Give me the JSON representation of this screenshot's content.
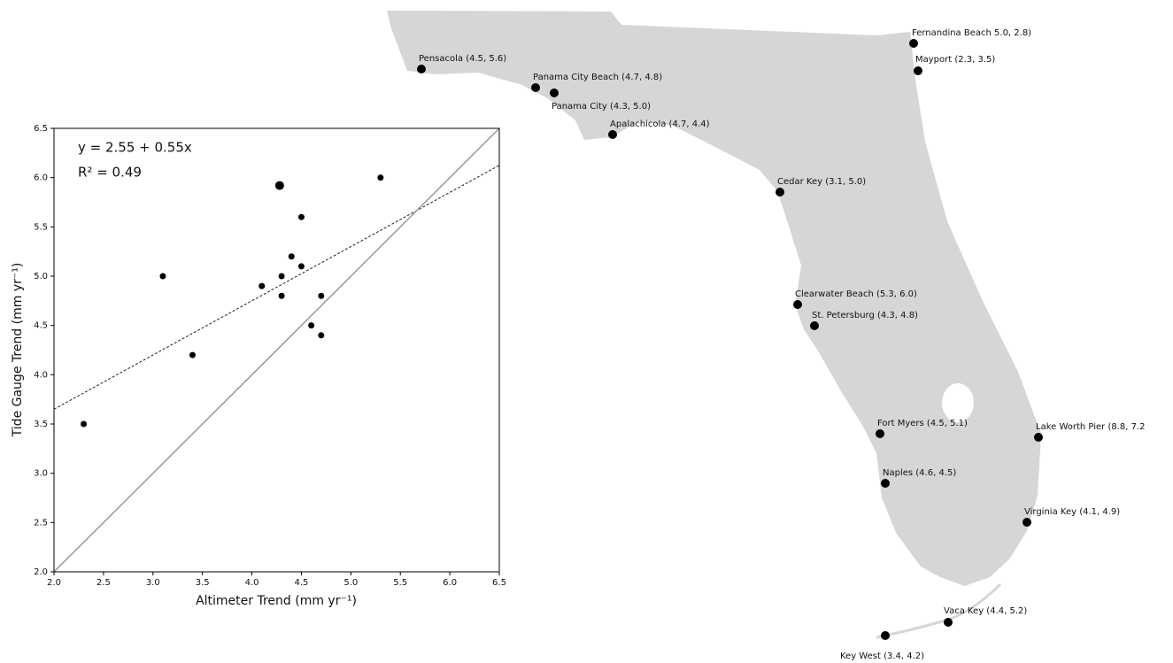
{
  "chart_data": {
    "type": "scatter",
    "x_label": "Altimeter Trend  (mm yr⁻¹)",
    "y_label": "Tide Gauge Trend (mm yr⁻¹)",
    "annotations": [
      "y   = 2.55 + 0.55x",
      "R² = 0.49"
    ],
    "x": [
      2.3,
      3.1,
      3.4,
      4.1,
      4.3,
      4.3,
      4.4,
      4.5,
      4.5,
      4.6,
      4.7,
      4.7,
      5.3,
      4.28
    ],
    "values": [
      3.5,
      5.0,
      4.2,
      4.9,
      5.0,
      4.8,
      5.2,
      5.1,
      5.6,
      4.5,
      4.4,
      4.8,
      6.0,
      5.92
    ],
    "color": "#000000",
    "lines": [
      {
        "x": [
          2.0,
          6.5
        ],
        "y": [
          3.65,
          6.125
        ],
        "style": "dashed",
        "color": "#222222"
      },
      {
        "x": [
          2.0,
          6.5
        ],
        "y": [
          2.0,
          6.5
        ],
        "style": "solid",
        "color": "#999999"
      }
    ],
    "xlim": [
      2.0,
      6.5
    ],
    "ylim": [
      2.0,
      6.5
    ],
    "xticks": [
      {
        "value": 2,
        "label": "2.0"
      },
      2.5,
      {
        "value": 3,
        "label": "3.0"
      },
      3.5,
      {
        "value": 4,
        "label": "4.0"
      },
      4.5,
      {
        "value": 5,
        "label": "5.0"
      },
      5.5,
      {
        "value": 6,
        "label": "6.0"
      },
      6.5
    ],
    "yticks": [
      {
        "value": 2,
        "label": "2.0"
      },
      2.5,
      {
        "value": 3,
        "label": "3.0"
      },
      3.5,
      {
        "value": 4,
        "label": "4.0"
      },
      4.5,
      {
        "value": 5,
        "label": "5.0"
      },
      5.5,
      {
        "value": 6,
        "label": "6.0"
      },
      6.5
    ]
  },
  "map": {
    "stations": [
      "Fernandina Beach 5.0, 2.8)",
      "Mayport (2.3, 3.5)",
      "Pensacola (4.5, 5.6)",
      "Panama City Beach (4.7, 4.8)",
      "Panama City (4.3, 5.0)",
      "Apalachicola (4.7, 4.4)",
      "Cedar Key (3.1, 5.0)",
      "Clearwater Beach (5.3, 6.0)",
      "St. Petersburg (4.3, 4.8)",
      "Fort Myers (4.5, 5.1)",
      "Lake Worth Pier (8.8, 7.2",
      "Naples (4.6, 4.5)",
      "Virginia Key (4.1, 4.9)",
      "Vaca Key (4.4, 5.2)",
      "Key West (3.4, 4.2)"
    ]
  }
}
